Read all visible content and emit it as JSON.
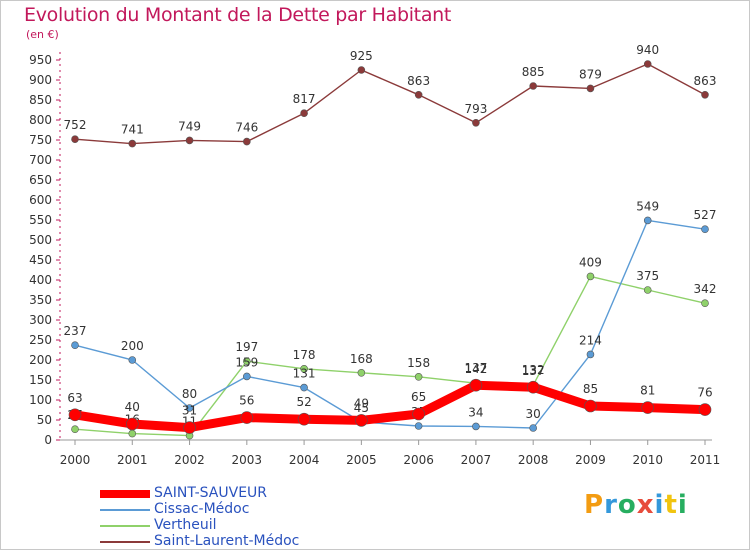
{
  "title": "Evolution du Montant de la Dette par Habitant",
  "unit": "(en €)",
  "brand": {
    "letters": [
      {
        "ch": "P",
        "color": "#f39c12"
      },
      {
        "ch": "r",
        "color": "#3498db"
      },
      {
        "ch": "o",
        "color": "#27ae60"
      },
      {
        "ch": "x",
        "color": "#e74c3c"
      },
      {
        "ch": "i",
        "color": "#3498db"
      },
      {
        "ch": "t",
        "color": "#f1c40f"
      },
      {
        "ch": "i",
        "color": "#27ae60"
      }
    ]
  },
  "chart_data": {
    "type": "line",
    "x": [
      "2000",
      "2001",
      "2002",
      "2003",
      "2004",
      "2005",
      "2006",
      "2007",
      "2008",
      "2009",
      "2010",
      "2011"
    ],
    "yticks": [
      "0",
      "50",
      "100",
      "150",
      "200",
      "250",
      "300",
      "350",
      "400",
      "450",
      "500",
      "550",
      "600",
      "650",
      "700",
      "750",
      "800",
      "850",
      "900",
      "950"
    ],
    "ylim": [
      0,
      950
    ],
    "grid": false,
    "legend_position": "bottom-left",
    "series": [
      {
        "name": "SAINT-SAUVEUR",
        "color": "#ff0000",
        "values": [
          63,
          40,
          31,
          56,
          52,
          49,
          65,
          137,
          132,
          85,
          81,
          76
        ]
      },
      {
        "name": "Cissac-Médoc",
        "color": "#5b9bd5",
        "values": [
          237,
          200,
          80,
          159,
          131,
          45,
          35,
          34,
          30,
          214,
          549,
          527
        ]
      },
      {
        "name": "Vertheuil",
        "color": "#8fd16a",
        "values": [
          27,
          16,
          11,
          197,
          178,
          168,
          158,
          142,
          137,
          409,
          375,
          342
        ]
      },
      {
        "name": "Saint-Laurent-Médoc",
        "color": "#8b3a3a",
        "values": [
          752,
          741,
          749,
          746,
          817,
          925,
          863,
          793,
          885,
          879,
          940,
          863
        ]
      }
    ]
  }
}
